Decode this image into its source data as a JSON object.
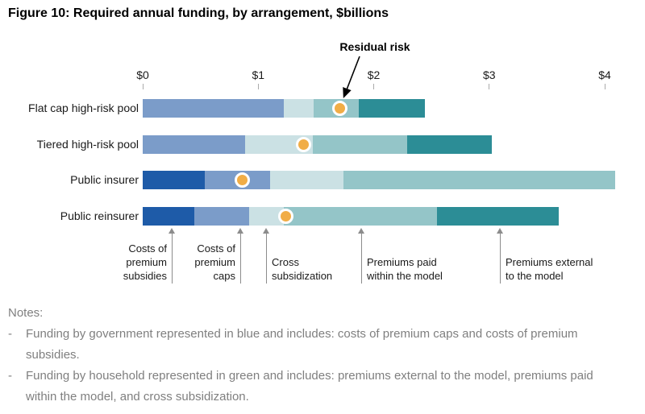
{
  "figure": {
    "title": "Figure 10: Required annual funding, by arrangement, $billions"
  },
  "chart_data": {
    "type": "bar",
    "subtype": "horizontal-stacked",
    "title": "Figure 10: Required annual funding, by arrangement, $billions",
    "unit": "$billions",
    "x_ticks": [
      "$0",
      "$1",
      "$2",
      "$3",
      "$4"
    ],
    "x_tick_values": [
      0,
      1,
      2,
      3,
      4
    ],
    "xlim": [
      0,
      4.3
    ],
    "grid": false,
    "legend_position": "below-as-callout-labels",
    "categories": [
      "Flat cap high-risk pool",
      "Tiered high-risk pool",
      "Public insurer",
      "Public reinsurer"
    ],
    "series": [
      {
        "name": "Costs of premium subsidies",
        "color": "#1e5ba8",
        "values": [
          0,
          0,
          0.54,
          0.45
        ]
      },
      {
        "name": "Costs of premium caps",
        "color": "#7b9cc9",
        "values": [
          1.22,
          0.89,
          0.56,
          0.47
        ]
      },
      {
        "name": "Cross subsidization",
        "color": "#cbe1e4",
        "values": [
          0.26,
          0.58,
          0.64,
          0.3
        ]
      },
      {
        "name": "Premiums paid within the model",
        "color": "#94c5c8",
        "values": [
          0.39,
          0.82,
          2.35,
          1.33
        ]
      },
      {
        "name": "Premiums external to the model",
        "color": "#2c8d96",
        "values": [
          0.57,
          0.73,
          0,
          1.05
        ]
      }
    ],
    "totals": [
      2.44,
      3.02,
      4.09,
      3.6
    ],
    "markers": {
      "name": "Residual risk",
      "values": [
        1.71,
        1.39,
        0.86,
        1.24
      ],
      "fill": "#f1ad46",
      "ring": "#ffffff"
    }
  },
  "segment_labels": [
    {
      "lines": [
        "Costs of",
        "premium",
        "subsidies"
      ]
    },
    {
      "lines": [
        "Costs of",
        "premium",
        "caps"
      ]
    },
    {
      "lines": [
        "Cross",
        "subsidization"
      ]
    },
    {
      "lines": [
        "Premiums paid",
        "within the model"
      ]
    },
    {
      "lines": [
        "Premiums external",
        "to the model"
      ]
    }
  ],
  "notes": {
    "heading": "Notes:",
    "bullet": "-",
    "items": [
      "Funding by government represented in blue and includes: costs of premium caps and costs of premium subsidies.",
      "Funding by household represented in green and includes: premiums external to the model, premiums paid within the model, and cross subsidization."
    ]
  }
}
